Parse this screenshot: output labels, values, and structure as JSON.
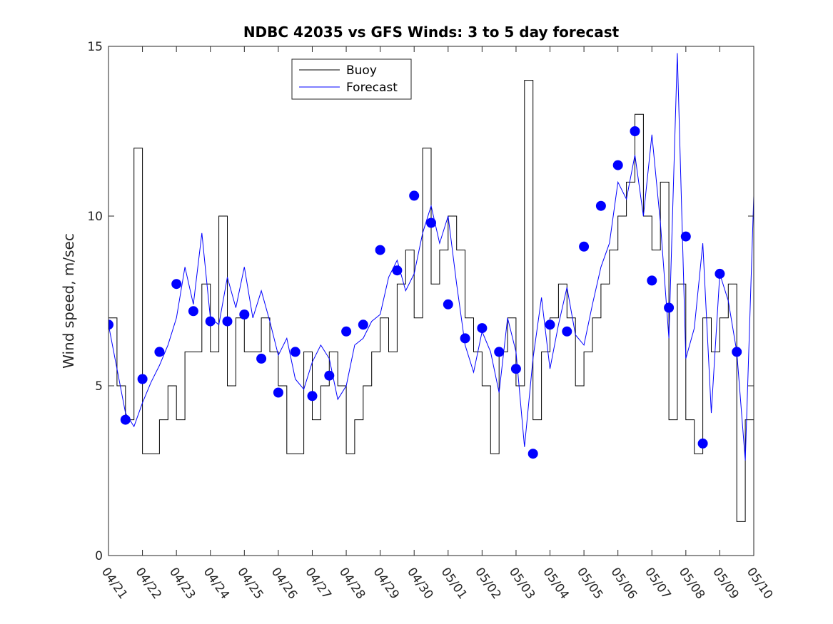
{
  "chart_data": {
    "type": "line",
    "title": "NDBC 42035 vs GFS Winds: 3 to 5 day forecast",
    "xlabel": "",
    "ylabel": "Wind speed, m/sec",
    "xlim": [
      "04/21",
      "05/10"
    ],
    "ylim": [
      0,
      15
    ],
    "yticks": [
      0,
      5,
      10,
      15
    ],
    "xtick_labels": [
      "04/21",
      "04/22",
      "04/23",
      "04/24",
      "04/25",
      "04/26",
      "04/27",
      "04/28",
      "04/29",
      "04/30",
      "05/01",
      "05/02",
      "05/03",
      "05/04",
      "05/05",
      "05/06",
      "05/07",
      "05/08",
      "05/09",
      "05/10"
    ],
    "grid": false,
    "legend_position": "top-center",
    "series": [
      {
        "name": "Buoy",
        "color": "#000000",
        "style": "stepped line",
        "x": [
          "04/21 00:00",
          "04/21 06:00",
          "04/21 12:00",
          "04/21 18:00",
          "04/22 00:00",
          "04/22 06:00",
          "04/22 12:00",
          "04/22 18:00",
          "04/23 00:00",
          "04/23 06:00",
          "04/23 12:00",
          "04/23 18:00",
          "04/24 00:00",
          "04/24 06:00",
          "04/24 12:00",
          "04/24 18:00",
          "04/25 00:00",
          "04/25 06:00",
          "04/25 12:00",
          "04/25 18:00",
          "04/26 00:00",
          "04/26 06:00",
          "04/26 12:00",
          "04/26 18:00",
          "04/27 00:00",
          "04/27 06:00",
          "04/27 12:00",
          "04/27 18:00",
          "04/28 00:00",
          "04/28 06:00",
          "04/28 12:00",
          "04/28 18:00",
          "04/29 00:00",
          "04/29 06:00",
          "04/29 12:00",
          "04/29 18:00",
          "04/30 00:00",
          "04/30 06:00",
          "04/30 12:00",
          "04/30 18:00",
          "05/01 00:00",
          "05/01 06:00",
          "05/01 12:00",
          "05/01 18:00",
          "05/02 00:00",
          "05/02 06:00",
          "05/02 12:00",
          "05/02 18:00",
          "05/03 00:00",
          "05/03 06:00",
          "05/03 12:00",
          "05/03 18:00",
          "05/04 00:00",
          "05/04 06:00",
          "05/04 12:00",
          "05/04 18:00",
          "05/05 00:00",
          "05/05 06:00",
          "05/05 12:00",
          "05/05 18:00",
          "05/06 00:00",
          "05/06 06:00",
          "05/06 12:00",
          "05/06 18:00",
          "05/07 00:00",
          "05/07 06:00",
          "05/07 12:00",
          "05/07 18:00",
          "05/08 00:00",
          "05/08 06:00",
          "05/08 12:00",
          "05/08 18:00",
          "05/09 00:00",
          "05/09 06:00",
          "05/09 12:00",
          "05/09 18:00",
          "05/10 00:00"
        ],
        "values": [
          7,
          5,
          4,
          12,
          3,
          3,
          4,
          5,
          4,
          6,
          6,
          8,
          6,
          10,
          5,
          7,
          6,
          6,
          7,
          6,
          5,
          3,
          3,
          6,
          4,
          5,
          6,
          5,
          3,
          4,
          5,
          6,
          7,
          6,
          8,
          9,
          7,
          12,
          8,
          9,
          10,
          9,
          7,
          6,
          5,
          3,
          6,
          7,
          5,
          14,
          4,
          6,
          7,
          8,
          7,
          5,
          6,
          7,
          8,
          9,
          10,
          11,
          13,
          10,
          9,
          11,
          4,
          8,
          4,
          3,
          7,
          6,
          7,
          8,
          1,
          4,
          5
        ]
      },
      {
        "name": "Forecast",
        "color": "#0000ff",
        "style": "thin line, several overlapping forecast runs",
        "x": [
          "04/21 00:00",
          "04/21 06:00",
          "04/21 12:00",
          "04/21 18:00",
          "04/22 00:00",
          "04/22 06:00",
          "04/22 12:00",
          "04/22 18:00",
          "04/23 00:00",
          "04/23 06:00",
          "04/23 12:00",
          "04/23 18:00",
          "04/24 00:00",
          "04/24 06:00",
          "04/24 12:00",
          "04/24 18:00",
          "04/25 00:00",
          "04/25 06:00",
          "04/25 12:00",
          "04/25 18:00",
          "04/26 00:00",
          "04/26 06:00",
          "04/26 12:00",
          "04/26 18:00",
          "04/27 00:00",
          "04/27 06:00",
          "04/27 12:00",
          "04/27 18:00",
          "04/28 00:00",
          "04/28 06:00",
          "04/28 12:00",
          "04/28 18:00",
          "04/29 00:00",
          "04/29 06:00",
          "04/29 12:00",
          "04/29 18:00",
          "04/30 00:00",
          "04/30 06:00",
          "04/30 12:00",
          "04/30 18:00",
          "05/01 00:00",
          "05/01 06:00",
          "05/01 12:00",
          "05/01 18:00",
          "05/02 00:00",
          "05/02 06:00",
          "05/02 12:00",
          "05/02 18:00",
          "05/03 00:00",
          "05/03 06:00",
          "05/03 12:00",
          "05/03 18:00",
          "05/04 00:00",
          "05/04 06:00",
          "05/04 12:00",
          "05/04 18:00",
          "05/05 00:00",
          "05/05 06:00",
          "05/05 12:00",
          "05/05 18:00",
          "05/06 00:00",
          "05/06 06:00",
          "05/06 12:00",
          "05/06 18:00",
          "05/07 00:00",
          "05/07 06:00",
          "05/07 12:00",
          "05/07 18:00",
          "05/08 00:00",
          "05/08 06:00",
          "05/08 12:00",
          "05/08 18:00",
          "05/09 00:00",
          "05/09 06:00",
          "05/09 12:00",
          "05/09 18:00",
          "05/10 00:00"
        ],
        "values": [
          6.8,
          5.5,
          4.2,
          3.8,
          4.5,
          5.1,
          5.6,
          6.2,
          7.0,
          8.5,
          7.4,
          9.5,
          7.0,
          6.8,
          8.2,
          7.3,
          8.5,
          7.0,
          7.8,
          6.9,
          5.9,
          6.4,
          5.2,
          4.9,
          5.7,
          6.2,
          5.8,
          4.6,
          5.0,
          6.2,
          6.4,
          6.9,
          7.1,
          8.2,
          8.7,
          7.8,
          8.3,
          9.5,
          10.3,
          9.2,
          10.0,
          8.0,
          6.2,
          5.4,
          6.6,
          6.0,
          4.8,
          7.0,
          6.0,
          3.2,
          5.8,
          7.6,
          5.5,
          6.8,
          7.9,
          6.5,
          6.2,
          7.4,
          8.5,
          9.2,
          11.0,
          10.5,
          11.8,
          10.0,
          12.4,
          9.8,
          6.4,
          14.8,
          5.8,
          6.7,
          9.2,
          4.2,
          8.3,
          7.5,
          6.0,
          2.8,
          10.6
        ]
      },
      {
        "name": "",
        "color": "#0000ff",
        "style": "filled circle markers",
        "x": [
          "04/21 00:00",
          "04/21 12:00",
          "04/22 00:00",
          "04/22 12:00",
          "04/23 00:00",
          "04/23 12:00",
          "04/24 00:00",
          "04/24 12:00",
          "04/25 00:00",
          "04/25 12:00",
          "04/26 00:00",
          "04/26 12:00",
          "04/27 00:00",
          "04/27 12:00",
          "04/28 00:00",
          "04/28 12:00",
          "04/29 00:00",
          "04/29 12:00",
          "04/30 00:00",
          "04/30 12:00",
          "05/01 00:00",
          "05/01 12:00",
          "05/02 00:00",
          "05/02 12:00",
          "05/03 00:00",
          "05/03 12:00",
          "05/04 00:00",
          "05/04 12:00",
          "05/05 00:00",
          "05/05 12:00",
          "05/06 00:00",
          "05/06 12:00",
          "05/07 00:00",
          "05/07 12:00",
          "05/08 00:00",
          "05/08 12:00",
          "05/09 00:00",
          "05/09 12:00"
        ],
        "values": [
          6.8,
          4.0,
          5.2,
          6.0,
          8.0,
          7.2,
          6.9,
          6.9,
          7.1,
          5.8,
          4.8,
          6.0,
          4.7,
          5.3,
          6.6,
          6.8,
          9.0,
          8.4,
          10.6,
          9.8,
          7.4,
          6.4,
          6.7,
          6.0,
          5.5,
          3.0,
          6.8,
          6.6,
          9.1,
          10.3,
          11.5,
          12.5,
          8.1,
          7.3,
          9.4,
          3.3,
          8.3,
          6.0
        ]
      }
    ]
  }
}
